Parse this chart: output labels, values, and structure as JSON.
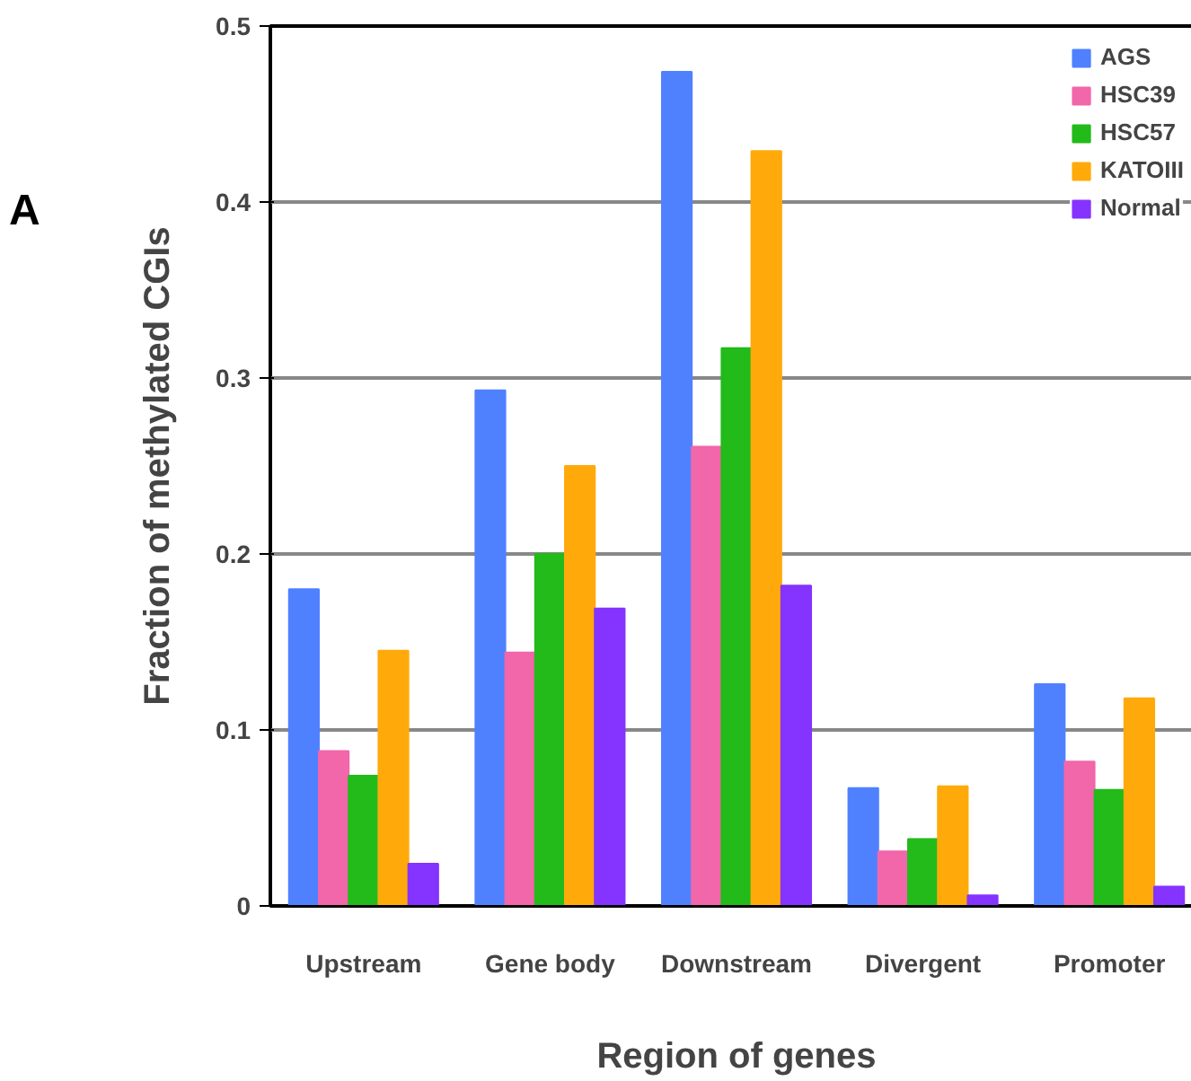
{
  "chart_data": {
    "type": "bar",
    "categories": [
      "Upstream",
      "Gene body",
      "Downstream",
      "Divergent",
      "Promoter"
    ],
    "series": [
      {
        "name": "AGS",
        "color": "#4f81ff",
        "values": [
          0.18,
          0.293,
          0.474,
          0.067,
          0.126
        ]
      },
      {
        "name": "HSC39",
        "color": "#f266aa",
        "values": [
          0.088,
          0.144,
          0.261,
          0.031,
          0.082
        ]
      },
      {
        "name": "HSC57",
        "color": "#22bb1a",
        "values": [
          0.074,
          0.2,
          0.317,
          0.038,
          0.066
        ]
      },
      {
        "name": "KATOIII",
        "color": "#ffaa0a",
        "values": [
          0.145,
          0.25,
          0.429,
          0.068,
          0.118
        ]
      },
      {
        "name": "Normal",
        "color": "#8533ff",
        "values": [
          0.024,
          0.169,
          0.182,
          0.006,
          0.011
        ]
      }
    ],
    "xlabel": "Region of genes",
    "ylabel": "Fraction of methylated CGIs",
    "ylim": [
      0,
      0.5
    ],
    "yticks": [
      0,
      0.1,
      0.2,
      0.3,
      0.4,
      0.5
    ],
    "grid": "y",
    "legend": "top right",
    "annotations": [
      "A"
    ]
  }
}
